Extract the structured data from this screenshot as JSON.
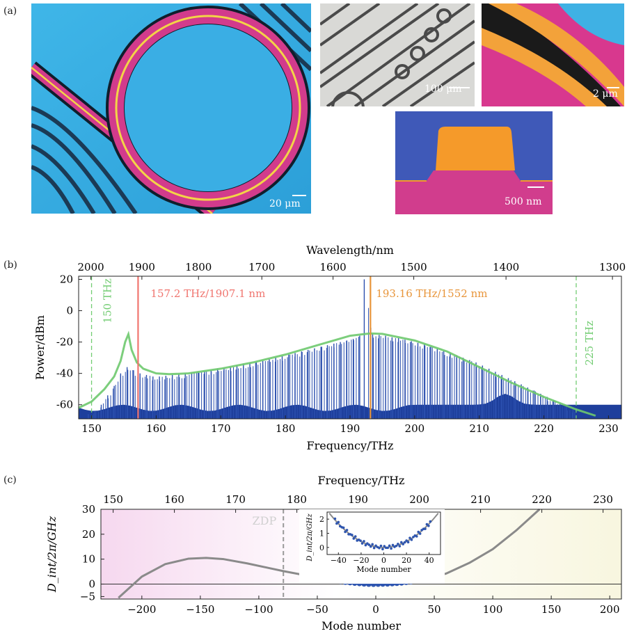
{
  "panels": {
    "a": {
      "label": "(a)"
    },
    "b": {
      "label": "(b)"
    },
    "c": {
      "label": "(c)"
    }
  },
  "images": {
    "ring": {
      "scale_label": "20 μm"
    },
    "array": {
      "scale_label": "100 μm"
    },
    "closeup": {
      "scale_label": "2 μm"
    },
    "crosssection": {
      "scale_label": "500 nm"
    }
  },
  "chart_data": [
    {
      "type": "line",
      "title": "",
      "xlabel": "Frequency/THz",
      "ylabel": "Power/dBm",
      "x2label": "Wavelength/nm",
      "xlim": [
        148,
        232
      ],
      "ylim": [
        -69,
        22
      ],
      "xticks": [
        150,
        160,
        170,
        180,
        190,
        200,
        210,
        220,
        230
      ],
      "yticks": [
        20,
        0,
        -20,
        -40,
        -60
      ],
      "x2ticks": [
        2000,
        1900,
        1800,
        1700,
        1600,
        1500,
        1400,
        1300
      ],
      "markers": [
        {
          "x": 157.2,
          "label": "157.2 THz/1907.1 nm",
          "color": "#f0756f",
          "style": "solid"
        },
        {
          "x": 193.16,
          "label": "193.16 THz/1552 nm",
          "color": "#e8953a",
          "style": "solid"
        },
        {
          "x": 150,
          "label": "150 THz",
          "color": "#72cc72",
          "style": "dashed"
        },
        {
          "x": 225,
          "label": "225 THz",
          "color": "#72cc72",
          "style": "dashed"
        }
      ],
      "series": [
        {
          "name": "",
          "kind": "envelope",
          "color": "#6ec96e",
          "x": [
            148,
            150,
            152,
            153.5,
            154.5,
            155.2,
            155.7,
            156.2,
            157,
            158,
            160,
            162,
            165,
            170,
            175,
            180,
            185,
            190,
            192,
            193.16,
            195,
            200,
            205,
            210,
            215,
            220,
            225,
            228
          ],
          "y": [
            -62,
            -58,
            -50,
            -42,
            -32,
            -20,
            -15,
            -25,
            -33,
            -37,
            -40,
            -40.5,
            -40,
            -37,
            -33,
            -28,
            -22,
            -16,
            -15,
            -14.5,
            -14.8,
            -19,
            -26,
            -36,
            -46,
            -55,
            -63,
            -67
          ]
        },
        {
          "name": "",
          "kind": "comb",
          "color": "#2b4fae",
          "x": [
            149.5,
            150.5,
            151.5,
            152.5,
            153.5,
            154.5,
            155.5,
            156.5,
            157.5,
            158.5,
            159.5,
            160.5,
            161.5,
            162.5,
            163.5,
            164.5,
            165.5,
            166.5,
            167.5,
            168.5,
            169.5,
            170.5,
            171.5,
            172.5,
            173.5,
            174.5,
            175.5,
            176.5,
            177.5,
            178.5,
            179.5,
            180.5,
            181.5,
            182.5,
            183.5,
            184.5,
            185.5,
            186.5,
            187.5,
            188.5,
            189.5,
            190.5,
            191.5,
            192.2,
            193.5,
            194.5,
            195.5,
            196.5,
            197.5,
            198.5,
            199.5,
            200.5,
            201.5,
            202.5,
            203.5,
            204.5,
            205.5,
            206.5,
            207.5,
            208.5,
            209.5,
            210.5,
            211.5,
            212.5,
            213.5,
            214.5,
            215.5,
            216.5,
            217.5,
            218.5,
            219.5,
            220.5,
            221.5,
            222.5,
            223.5,
            224.5
          ],
          "y": [
            -66,
            -64,
            -60,
            -54,
            -48,
            -40,
            -36,
            -38,
            -40,
            -41,
            -42,
            -42,
            -41.5,
            -41,
            -40.5,
            -40,
            -39.5,
            -39,
            -38.5,
            -38,
            -37,
            -36.5,
            -36,
            -35,
            -34,
            -33.5,
            -33,
            -32,
            -31,
            -30,
            -29,
            -28,
            -27,
            -26,
            -25,
            -24,
            -23,
            -22,
            -21,
            -20,
            -19,
            -18,
            -16,
            20,
            -15,
            -15.5,
            -16,
            -17,
            -17.5,
            -18.5,
            -19.5,
            -20.5,
            -21.5,
            -23,
            -24,
            -25.5,
            -27,
            -28.5,
            -30,
            -31.5,
            -33,
            -35,
            -37,
            -39,
            -41,
            -43,
            -45,
            -47,
            -49,
            -51,
            -53,
            -55,
            -57,
            -59,
            -61,
            -63
          ]
        }
      ]
    },
    {
      "type": "line",
      "title": "",
      "xlabel": "Mode number",
      "ylabel": "D_int/2π/GHz",
      "x2label": "Frequency/THz",
      "xlim": [
        -235,
        210
      ],
      "ylim": [
        -6,
        30
      ],
      "xticks": [
        -200,
        -150,
        -100,
        -50,
        0,
        50,
        100,
        150,
        200
      ],
      "yticks": [
        30,
        20,
        10,
        0,
        -5
      ],
      "x2ticks": [
        150,
        160,
        170,
        180,
        190,
        200,
        210,
        220,
        230
      ],
      "annotations": [
        {
          "text": "ZDP",
          "x": -79
        }
      ],
      "series": [
        {
          "name": "",
          "kind": "fit",
          "color": "#8a8a8a",
          "x": [
            -220,
            -200,
            -180,
            -160,
            -145,
            -130,
            -110,
            -90,
            -79,
            -60,
            -40,
            -20,
            0,
            20,
            40,
            60,
            80,
            100,
            120,
            140
          ],
          "y": [
            -5.5,
            3,
            8,
            10.2,
            10.5,
            10,
            8.3,
            6.3,
            5.2,
            3.5,
            1.6,
            0.4,
            0,
            0.4,
            1.8,
            4.2,
            8.5,
            14,
            21.5,
            30
          ]
        },
        {
          "name": "",
          "kind": "measured",
          "color": "#2f56b0",
          "x": [
            -42,
            -38,
            -34,
            -30,
            -26,
            -22,
            -18,
            -14,
            -10,
            -6,
            -2,
            2,
            6,
            10,
            14,
            18,
            22,
            26,
            30,
            34,
            38
          ],
          "y": [
            2.0,
            1.6,
            1.3,
            1.1,
            0.8,
            0.6,
            0.4,
            0.25,
            0.1,
            0.0,
            -0.05,
            0.0,
            0.05,
            0.1,
            0.2,
            0.35,
            0.5,
            0.75,
            1.0,
            1.3,
            1.7
          ]
        }
      ],
      "inset": {
        "xlabel": "Mode number",
        "ylabel": "D_int/2π/GHz",
        "xticks": [
          -40,
          -20,
          0,
          20,
          40
        ],
        "yticks": [
          0,
          1,
          2
        ],
        "xlim": [
          -50,
          50
        ],
        "ylim": [
          -0.5,
          2.5
        ]
      }
    }
  ]
}
